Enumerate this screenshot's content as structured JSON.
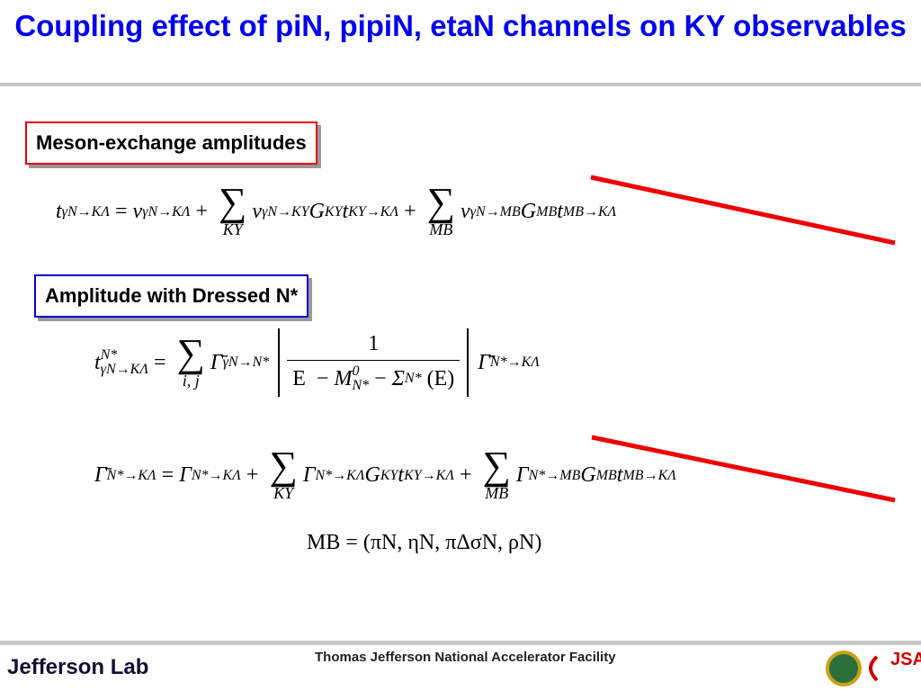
{
  "title": "Coupling effect of piN, pipiN, etaN channels on KY observables",
  "sections": [
    {
      "label": "Meson-exchange amplitudes",
      "equations": [
        [
          {
            "base": "t",
            "sub": "γN→KΛ"
          },
          "=",
          {
            "base": "v",
            "sub": "γN→KΛ"
          },
          "+",
          {
            "op": "∑",
            "under": "KY"
          },
          {
            "base": "v",
            "sub": "γN→KY"
          },
          {
            "base": "G",
            "sub": "KY"
          },
          {
            "base": "t",
            "sub": "KY→KΛ"
          },
          "+",
          {
            "op": "∑",
            "under": "MB"
          },
          {
            "base": "v",
            "sub": "γN→MB"
          },
          {
            "base": "G",
            "sub": "MB"
          },
          {
            "base": "t",
            "sub": "MB→KΛ"
          }
        ]
      ]
    },
    {
      "label": "Amplitude with Dressed N*",
      "equations": [
        [
          {
            "base": "t",
            "sup": "N*",
            "sub": "γN→KΛ"
          },
          "=",
          {
            "op": "∑",
            "under": "i,  j"
          },
          {
            "base": "Γ̄",
            "sub": "γN→N*"
          },
          {
            "num": "1",
            "den": [
              "E",
              "−",
              {
                "base": "M",
                "sup": "0",
                "sub": "N*"
              },
              "−",
              {
                "base": "Σ",
                "sup": "N*"
              },
              "(E)"
            ]
          },
          {
            "base": "Γ̄",
            "sub": "N*→KΛ"
          }
        ],
        [
          {
            "base": "Γ̄",
            "sub": "N*→KΛ"
          },
          "=",
          {
            "base": "Γ",
            "sub": "N*→KΛ"
          },
          "+",
          {
            "op": "∑",
            "under": "KY"
          },
          {
            "base": "Γ",
            "sub": "N*→KΛ"
          },
          {
            "base": "G",
            "sub": "KY"
          },
          {
            "base": "t",
            "sub": "KY→KΛ"
          },
          "+",
          {
            "op": "∑",
            "under": "MB"
          },
          {
            "base": "Γ",
            "sub": "N*→MB"
          },
          {
            "base": "G",
            "sub": "MB"
          },
          {
            "base": "t",
            "sub": "MB→KΛ"
          }
        ],
        [
          "MB = (πN, ηN, πΔσN, ρN)"
        ]
      ]
    }
  ],
  "footer": {
    "logo": "Jefferson Lab",
    "institution": "Thomas Jefferson National Accelerator Facility",
    "partner": "JSA"
  }
}
